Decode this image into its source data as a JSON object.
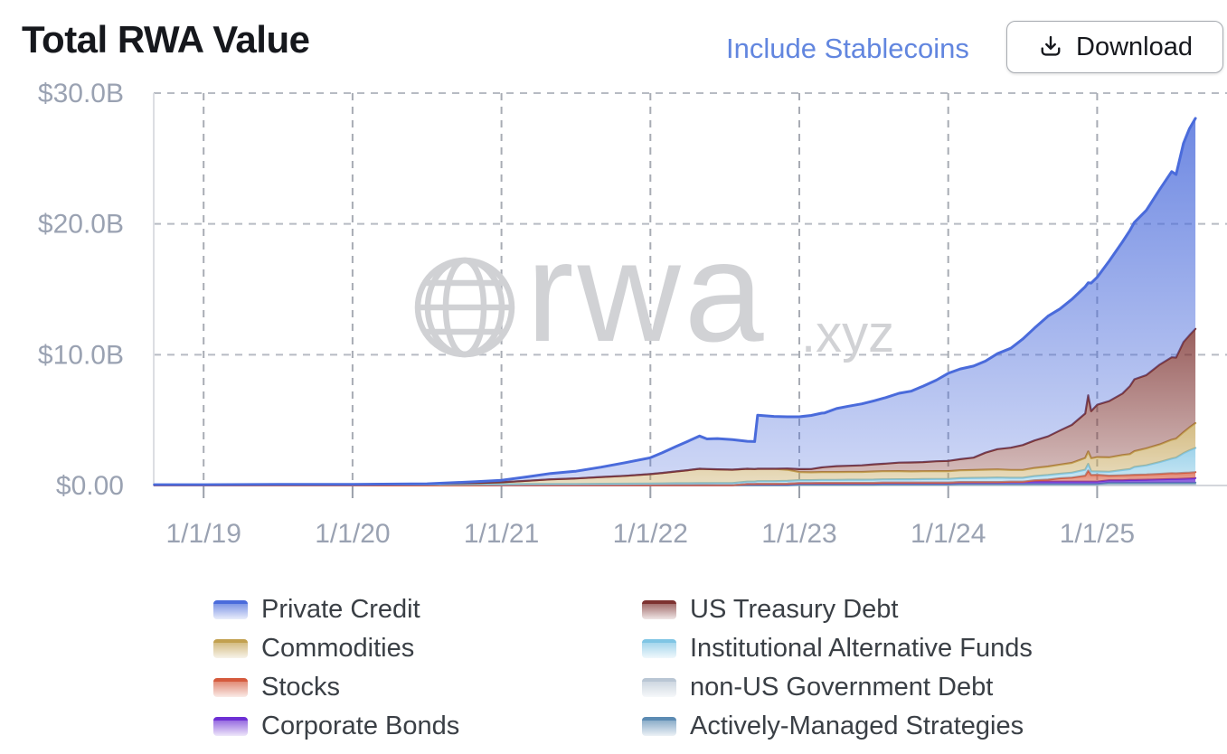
{
  "header": {
    "title": "Total RWA Value",
    "include_stablecoins_label": "Include Stablecoins",
    "download_label": "Download"
  },
  "watermark": {
    "brand": "rwa",
    "tld": ".xyz"
  },
  "colors": {
    "link_blue": "#6286df",
    "axis_label": "#9aa2b2",
    "grid_dash": "#b7bbc3",
    "grid_vertical": "#a8acb4",
    "axis_zero_line": "#d3d6db",
    "plot_border": "#dcdee3",
    "title_text": "#16181d",
    "watermark_gray": "#d1d2d5",
    "legend_text": "#3a3f45"
  },
  "legend": {
    "columns": [
      {
        "items": [
          {
            "series": "private_credit",
            "label": "Private Credit"
          },
          {
            "series": "commodities",
            "label": "Commodities"
          },
          {
            "series": "stocks",
            "label": "Stocks"
          },
          {
            "series": "corporate_bonds",
            "label": "Corporate Bonds"
          }
        ]
      },
      {
        "items": [
          {
            "series": "us_treasury",
            "label": "US Treasury Debt"
          },
          {
            "series": "inst_alt_funds",
            "label": "Institutional Alternative Funds"
          },
          {
            "series": "non_us_gov",
            "label": "non-US Government Debt"
          },
          {
            "series": "actively_managed",
            "label": "Actively-Managed Strategies"
          }
        ]
      }
    ]
  },
  "chart_data": {
    "type": "area",
    "stacked": true,
    "order": "series listed bottom_to_top",
    "title": "Total RWA Value",
    "x_unit": "decimal_year",
    "x_range": [
      2018.665,
      2025.79
    ],
    "y_unit": "USD billions",
    "ylim": [
      0,
      30
    ],
    "grid": "dashed",
    "legend_position": "bottom",
    "x_axis": {
      "ticks": [
        {
          "value": 2019,
          "label": "1/1/19"
        },
        {
          "value": 2020,
          "label": "1/1/20"
        },
        {
          "value": 2021,
          "label": "1/1/21"
        },
        {
          "value": 2022,
          "label": "1/1/22"
        },
        {
          "value": 2023,
          "label": "1/1/23"
        },
        {
          "value": 2024,
          "label": "1/1/24"
        },
        {
          "value": 2025,
          "label": "1/1/25"
        }
      ]
    },
    "y_axis": {
      "ticks": [
        {
          "value": 0,
          "label": "$0.00"
        },
        {
          "value": 10,
          "label": "$10.0B"
        },
        {
          "value": 20,
          "label": "$20.0B"
        },
        {
          "value": 30,
          "label": "$30.0B"
        }
      ]
    },
    "x": [
      2018.67,
      2019,
      2019.5,
      2020,
      2020.5,
      2020.83,
      2021,
      2021.17,
      2021.33,
      2021.5,
      2021.67,
      2021.83,
      2022,
      2022.08,
      2022.17,
      2022.25,
      2022.33,
      2022.38,
      2022.45,
      2022.55,
      2022.65,
      2022.7,
      2022.72,
      2022.83,
      2022.92,
      2023,
      2023.08,
      2023.15,
      2023.17,
      2023.25,
      2023.33,
      2023.42,
      2023.5,
      2023.56,
      2023.58,
      2023.67,
      2023.75,
      2023.83,
      2023.92,
      2024,
      2024.08,
      2024.17,
      2024.25,
      2024.33,
      2024.42,
      2024.5,
      2024.58,
      2024.67,
      2024.75,
      2024.83,
      2024.92,
      2024.94,
      2024.96,
      2025,
      2025.08,
      2025.17,
      2025.22,
      2025.25,
      2025.33,
      2025.42,
      2025.5,
      2025.53,
      2025.58,
      2025.62,
      2025.66
    ],
    "series": [
      {
        "key": "non_us_gov",
        "name": "non-US Government Debt",
        "line": "#b9c6d4",
        "fill_opacity_top": 0.9,
        "fill_opacity_bottom": 0.5,
        "values": [
          0.01,
          0.01,
          0.01,
          0.01,
          0.01,
          0.01,
          0.02,
          0.02,
          0.02,
          0.02,
          0.02,
          0.02,
          0.02,
          0.02,
          0.02,
          0.02,
          0.02,
          0.02,
          0.02,
          0.02,
          0.02,
          0.02,
          0.02,
          0.02,
          0.02,
          0.05,
          0.05,
          0.05,
          0.05,
          0.05,
          0.05,
          0.05,
          0.05,
          0.05,
          0.05,
          0.05,
          0.05,
          0.05,
          0.05,
          0.05,
          0.06,
          0.06,
          0.06,
          0.06,
          0.06,
          0.06,
          0.06,
          0.06,
          0.06,
          0.06,
          0.06,
          0.06,
          0.06,
          0.06,
          0.1,
          0.1,
          0.1,
          0.1,
          0.1,
          0.1,
          0.1,
          0.1,
          0.1,
          0.1,
          0.1
        ]
      },
      {
        "key": "actively_managed",
        "name": "Actively-Managed Strategies",
        "line": "#5c8bb3",
        "fill_opacity_top": 0.7,
        "fill_opacity_bottom": 0.35,
        "values": [
          0,
          0,
          0,
          0,
          0,
          0,
          0,
          0,
          0,
          0,
          0,
          0,
          0,
          0,
          0,
          0,
          0,
          0,
          0,
          0,
          0,
          0,
          0,
          0,
          0,
          0.02,
          0.02,
          0.02,
          0.02,
          0.02,
          0.02,
          0.02,
          0.02,
          0.03,
          0.03,
          0.03,
          0.03,
          0.03,
          0.03,
          0.03,
          0.05,
          0.05,
          0.05,
          0.05,
          0.05,
          0.05,
          0.06,
          0.06,
          0.06,
          0.06,
          0.06,
          0.06,
          0.06,
          0.06,
          0.12,
          0.12,
          0.12,
          0.12,
          0.12,
          0.12,
          0.12,
          0.12,
          0.12,
          0.12,
          0.12
        ]
      },
      {
        "key": "corporate_bonds",
        "name": "Corporate Bonds",
        "line": "#6d2fd4",
        "fill_opacity_top": 0.9,
        "fill_opacity_bottom": 0.45,
        "values": [
          0,
          0,
          0,
          0,
          0,
          0,
          0,
          0,
          0,
          0,
          0,
          0,
          0,
          0,
          0,
          0,
          0,
          0,
          0,
          0,
          0.1,
          0.1,
          0.11,
          0.11,
          0.12,
          0.12,
          0.12,
          0.13,
          0.13,
          0.13,
          0.13,
          0.13,
          0.13,
          0.14,
          0.14,
          0.14,
          0.14,
          0.14,
          0.14,
          0.14,
          0.15,
          0.15,
          0.15,
          0.15,
          0.18,
          0.18,
          0.18,
          0.18,
          0.18,
          0.18,
          0.18,
          0.18,
          0.18,
          0.18,
          0.18,
          0.18,
          0.2,
          0.2,
          0.22,
          0.25,
          0.28,
          0.28,
          0.3,
          0.32,
          0.35
        ]
      },
      {
        "key": "stocks",
        "name": "Stocks",
        "line": "#d55a3d",
        "fill_opacity_top": 0.8,
        "fill_opacity_bottom": 0.4,
        "values": [
          0,
          0,
          0,
          0,
          0,
          0,
          0,
          0,
          0,
          0,
          0,
          0,
          0,
          0,
          0,
          0,
          0,
          0,
          0,
          0,
          0,
          0,
          0,
          0,
          0,
          0,
          0,
          0,
          0,
          0,
          0,
          0,
          0,
          0,
          0,
          0,
          0,
          0,
          0,
          0,
          0,
          0,
          0,
          0,
          0,
          0,
          0.1,
          0.15,
          0.25,
          0.3,
          0.45,
          0.85,
          0.5,
          0.52,
          0.35,
          0.38,
          0.38,
          0.4,
          0.4,
          0.42,
          0.45,
          0.43,
          0.45,
          0.45,
          0.45
        ]
      },
      {
        "key": "inst_alt_funds",
        "name": "Institutional Alternative Funds",
        "line": "#7fc5e4",
        "fill_opacity_top": 0.75,
        "fill_opacity_bottom": 0.38,
        "values": [
          0.05,
          0.05,
          0.06,
          0.06,
          0.07,
          0.08,
          0.08,
          0.09,
          0.1,
          0.1,
          0.11,
          0.12,
          0.13,
          0.14,
          0.15,
          0.15,
          0.16,
          0.16,
          0.17,
          0.17,
          0.18,
          0.18,
          0.2,
          0.2,
          0.21,
          0.22,
          0.22,
          0.23,
          0.23,
          0.23,
          0.24,
          0.24,
          0.25,
          0.25,
          0.25,
          0.26,
          0.26,
          0.27,
          0.28,
          0.28,
          0.3,
          0.32,
          0.33,
          0.35,
          0.3,
          0.3,
          0.32,
          0.35,
          0.35,
          0.38,
          0.45,
          0.5,
          0.28,
          0.25,
          0.3,
          0.4,
          0.45,
          0.6,
          0.7,
          0.9,
          1.1,
          1.2,
          1.5,
          1.7,
          1.85
        ]
      },
      {
        "key": "commodities",
        "name": "Commodities",
        "line": "#c2a04f",
        "fill_opacity_top": 0.7,
        "fill_opacity_bottom": 0.35,
        "values": [
          0,
          0,
          0.01,
          0.02,
          0.05,
          0.1,
          0.15,
          0.25,
          0.35,
          0.42,
          0.52,
          0.6,
          0.72,
          0.8,
          0.9,
          1.0,
          1.1,
          1.08,
          1.05,
          1.02,
          0.98,
          0.96,
          0.95,
          0.95,
          0.85,
          0.62,
          0.6,
          0.6,
          0.6,
          0.6,
          0.6,
          0.6,
          0.62,
          0.62,
          0.62,
          0.62,
          0.6,
          0.6,
          0.6,
          0.6,
          0.6,
          0.6,
          0.62,
          0.62,
          0.6,
          0.6,
          0.62,
          0.65,
          0.7,
          0.75,
          0.9,
          0.95,
          1.0,
          1.1,
          1.1,
          1.15,
          1.15,
          1.2,
          1.3,
          1.35,
          1.45,
          1.45,
          1.6,
          1.75,
          1.9
        ]
      },
      {
        "key": "us_treasury",
        "name": "US Treasury Debt",
        "line": "#7d3230",
        "fill_opacity_top": 0.78,
        "fill_opacity_bottom": 0.3,
        "values": [
          0,
          0,
          0,
          0,
          0,
          0,
          0,
          0,
          0,
          0,
          0,
          0,
          0,
          0,
          0,
          0,
          0,
          0,
          0,
          0,
          0,
          0,
          0,
          0,
          0.1,
          0.22,
          0.25,
          0.35,
          0.37,
          0.45,
          0.47,
          0.5,
          0.55,
          0.57,
          0.58,
          0.65,
          0.68,
          0.7,
          0.75,
          0.78,
          0.85,
          0.95,
          1.3,
          1.55,
          1.7,
          1.9,
          2.1,
          2.3,
          2.6,
          2.9,
          3.4,
          4.3,
          3.6,
          4.0,
          4.3,
          4.7,
          5.2,
          5.5,
          5.6,
          6.1,
          6.3,
          6.2,
          6.9,
          7.05,
          7.2
        ]
      },
      {
        "key": "private_credit",
        "name": "Private Credit",
        "line": "#4a6bdb",
        "fill_opacity_top": 0.8,
        "fill_opacity_bottom": 0.26,
        "values": [
          0,
          0,
          0,
          0,
          0,
          0.1,
          0.15,
          0.3,
          0.45,
          0.55,
          0.75,
          1.0,
          1.25,
          1.55,
          1.9,
          2.2,
          2.5,
          2.3,
          2.35,
          2.3,
          2.1,
          2.1,
          4.1,
          4.0,
          3.95,
          4.0,
          4.1,
          4.15,
          4.15,
          4.4,
          4.55,
          4.7,
          4.85,
          5.0,
          5.05,
          5.3,
          5.45,
          5.8,
          6.2,
          6.7,
          6.9,
          7.0,
          7.0,
          7.3,
          7.6,
          8.1,
          8.6,
          9.2,
          9.3,
          9.6,
          9.7,
          8.6,
          9.8,
          9.75,
          10.7,
          11.6,
          11.9,
          12.0,
          12.6,
          13.4,
          14.2,
          14.0,
          15.2,
          15.8,
          16.1
        ]
      }
    ]
  }
}
